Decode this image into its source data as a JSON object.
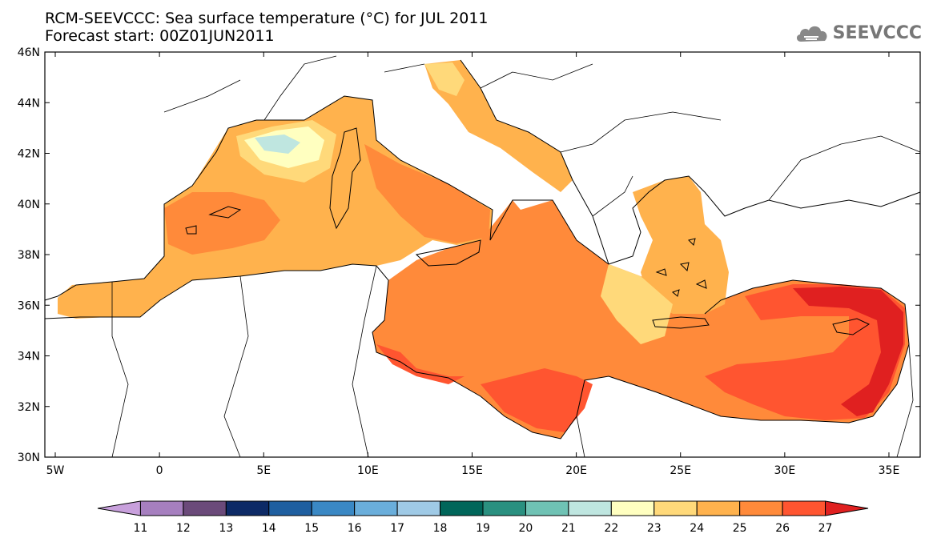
{
  "title": {
    "line1": "RCM-SEEVCCC: Sea surface temperature (°C) for JUL 2011",
    "line2": "Forecast start: 00Z01JUN2011"
  },
  "logo": {
    "text": "SEEVCCC",
    "icon": "cloud-logo-icon"
  },
  "map": {
    "lon_labels": [
      "5W",
      "0",
      "5E",
      "10E",
      "15E",
      "20E",
      "25E",
      "30E",
      "35E"
    ],
    "lat_labels": [
      "46N",
      "44N",
      "42N",
      "40N",
      "38N",
      "36N",
      "34N",
      "32N",
      "30N"
    ],
    "lon_range": [
      -5.5,
      36.5
    ],
    "lat_range": [
      30,
      46
    ]
  },
  "colorbar": {
    "labels": [
      "11",
      "12",
      "13",
      "14",
      "15",
      "16",
      "17",
      "18",
      "19",
      "20",
      "21",
      "22",
      "23",
      "24",
      "25",
      "26",
      "27"
    ],
    "colors": [
      "#c8a0dc",
      "#a67fbf",
      "#6b4a7a",
      "#0d2a66",
      "#1f5fa0",
      "#3a88c4",
      "#6aaedb",
      "#9fcae6",
      "#00665a",
      "#2a9080",
      "#6fc2b4",
      "#bfe6e0",
      "#ffffc0",
      "#ffd97a",
      "#ffb24d",
      "#ff8a3a",
      "#ff5530",
      "#e02020"
    ]
  },
  "sea_colors": {
    "t21": "#bfe6e0",
    "t22": "#ffffc0",
    "t23": "#ffd97a",
    "t24": "#ffb24d",
    "t25": "#ff8a3a",
    "t26": "#ff5530",
    "t27": "#e02020"
  }
}
